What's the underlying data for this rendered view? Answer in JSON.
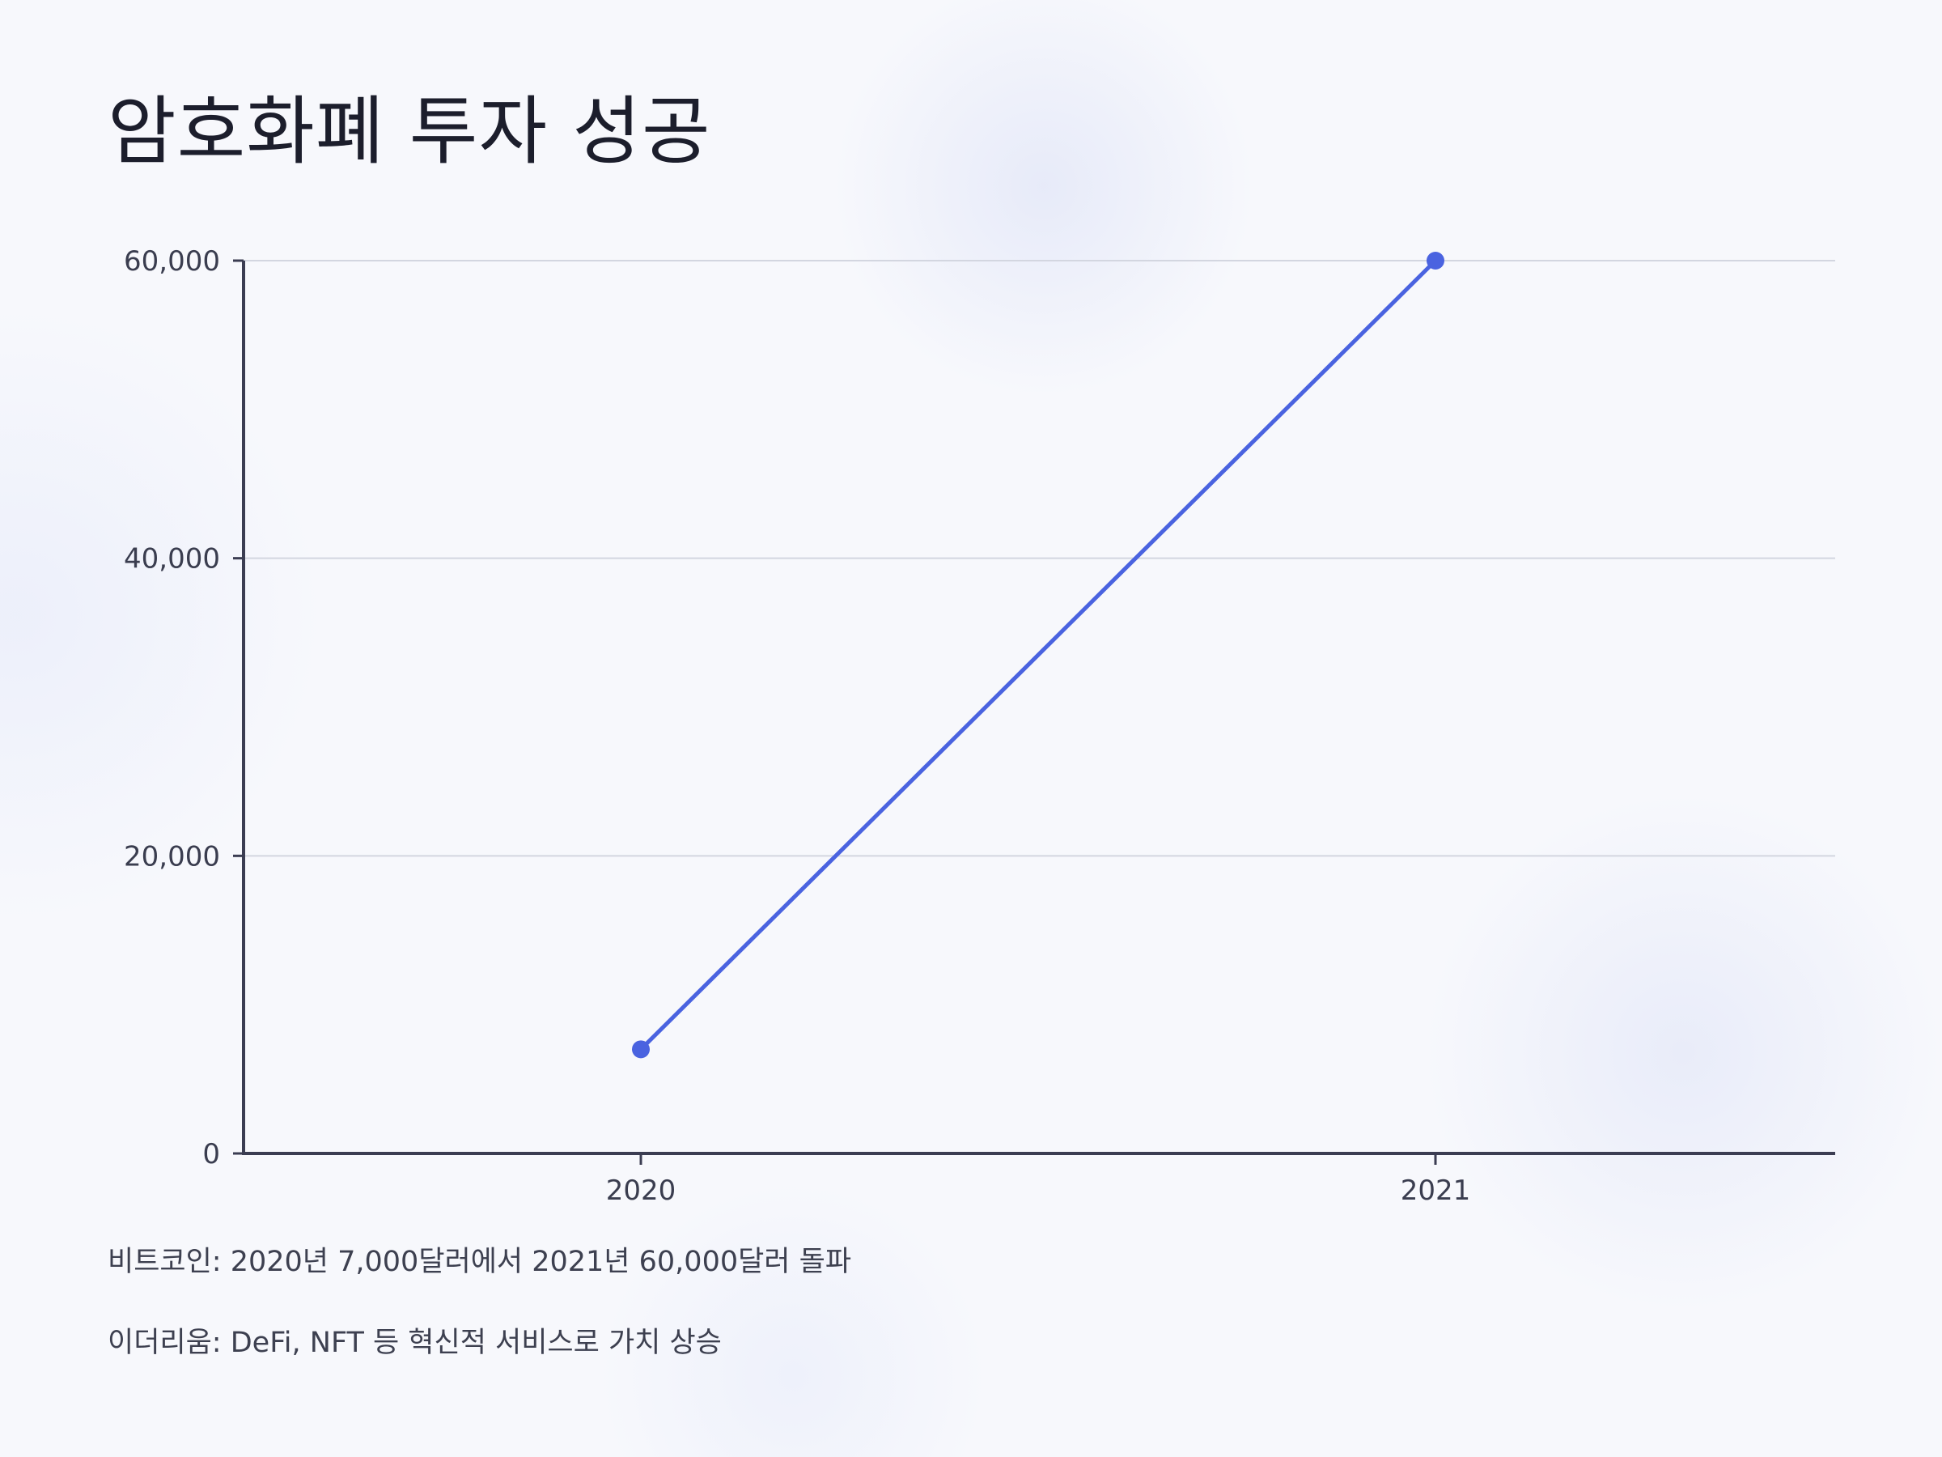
{
  "title": "암호화폐 투자 성공",
  "chart_data": {
    "type": "line",
    "title": "",
    "xlabel": "",
    "ylabel": "",
    "categories": [
      "2020",
      "2021"
    ],
    "series": [
      {
        "values": [
          7000,
          60000
        ]
      }
    ],
    "ylim": [
      0,
      60000
    ],
    "yticks": [
      "0",
      "20,000",
      "40,000",
      "60,000"
    ],
    "yticks_values": [
      0,
      20000,
      40000,
      60000
    ],
    "grid": true,
    "color": "#4a63e0"
  },
  "notes": [
    "비트코인: 2020년 7,000달러에서 2021년 60,000달러 돌파",
    "이더리움: DeFi, NFT 등 혁신적 서비스로 가치 상승"
  ]
}
